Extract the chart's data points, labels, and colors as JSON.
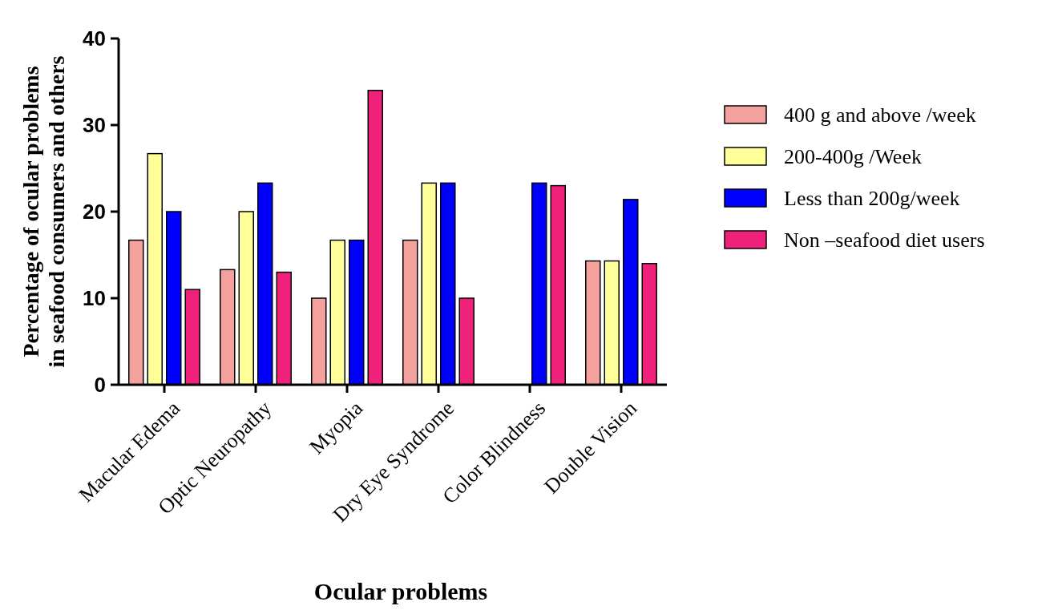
{
  "chart_data": {
    "type": "bar",
    "xlabel": "Ocular  problems",
    "ylabel": "Percentage of  ocular problems\nin seafood consumers and others",
    "categories": [
      "Macular Edema",
      "Optic Neuropathy",
      "Myopia",
      "Dry Eye Syndrome",
      "Color Blindness",
      "Double Vision"
    ],
    "series": [
      {
        "name": "400 g and above /week",
        "color": "#f4a09c",
        "values": [
          16.7,
          13.3,
          10,
          16.7,
          0,
          14.3
        ]
      },
      {
        "name": "200-400g /Week",
        "color": "#ffff99",
        "values": [
          26.7,
          20,
          16.7,
          23.3,
          0,
          14.3
        ]
      },
      {
        "name": "Less than 200g/week",
        "color": "#0000ff",
        "values": [
          20,
          23.3,
          16.7,
          23.3,
          23.3,
          21.4
        ]
      },
      {
        "name": "Non –seafood diet users",
        "color": "#f0217a",
        "values": [
          11,
          13,
          34,
          10,
          23,
          14
        ]
      }
    ],
    "ylim": [
      0,
      40
    ],
    "yticks": [
      0,
      10,
      20,
      30,
      40
    ],
    "legend": "right"
  }
}
